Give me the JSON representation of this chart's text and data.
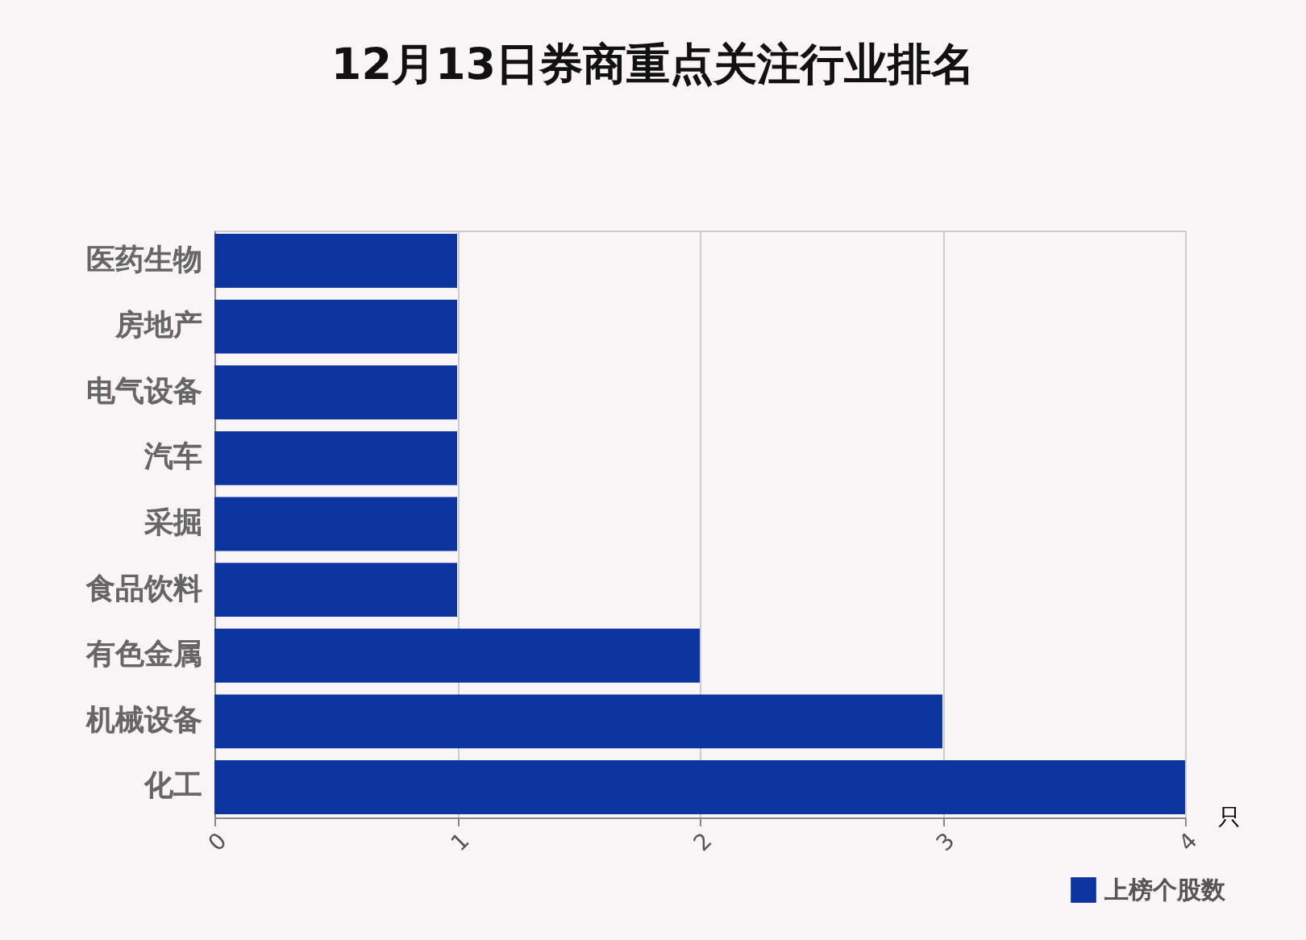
{
  "chart_data": {
    "type": "bar",
    "orientation": "horizontal",
    "title": "12月13日券商重点关注行业排名",
    "xlabel": "只",
    "categories": [
      "医药生物",
      "房地产",
      "电气设备",
      "汽车",
      "采掘",
      "食品饮料",
      "有色金属",
      "机械设备",
      "化工"
    ],
    "series": [
      {
        "name": "上榜个股数",
        "color": "#0d35a0",
        "values": [
          1,
          1,
          1,
          1,
          1,
          1,
          2,
          3,
          4
        ]
      }
    ],
    "xlim": [
      0,
      4
    ],
    "xticks": [
      0,
      1,
      2,
      3,
      4
    ],
    "grid": "x",
    "legend": "bottom right"
  }
}
